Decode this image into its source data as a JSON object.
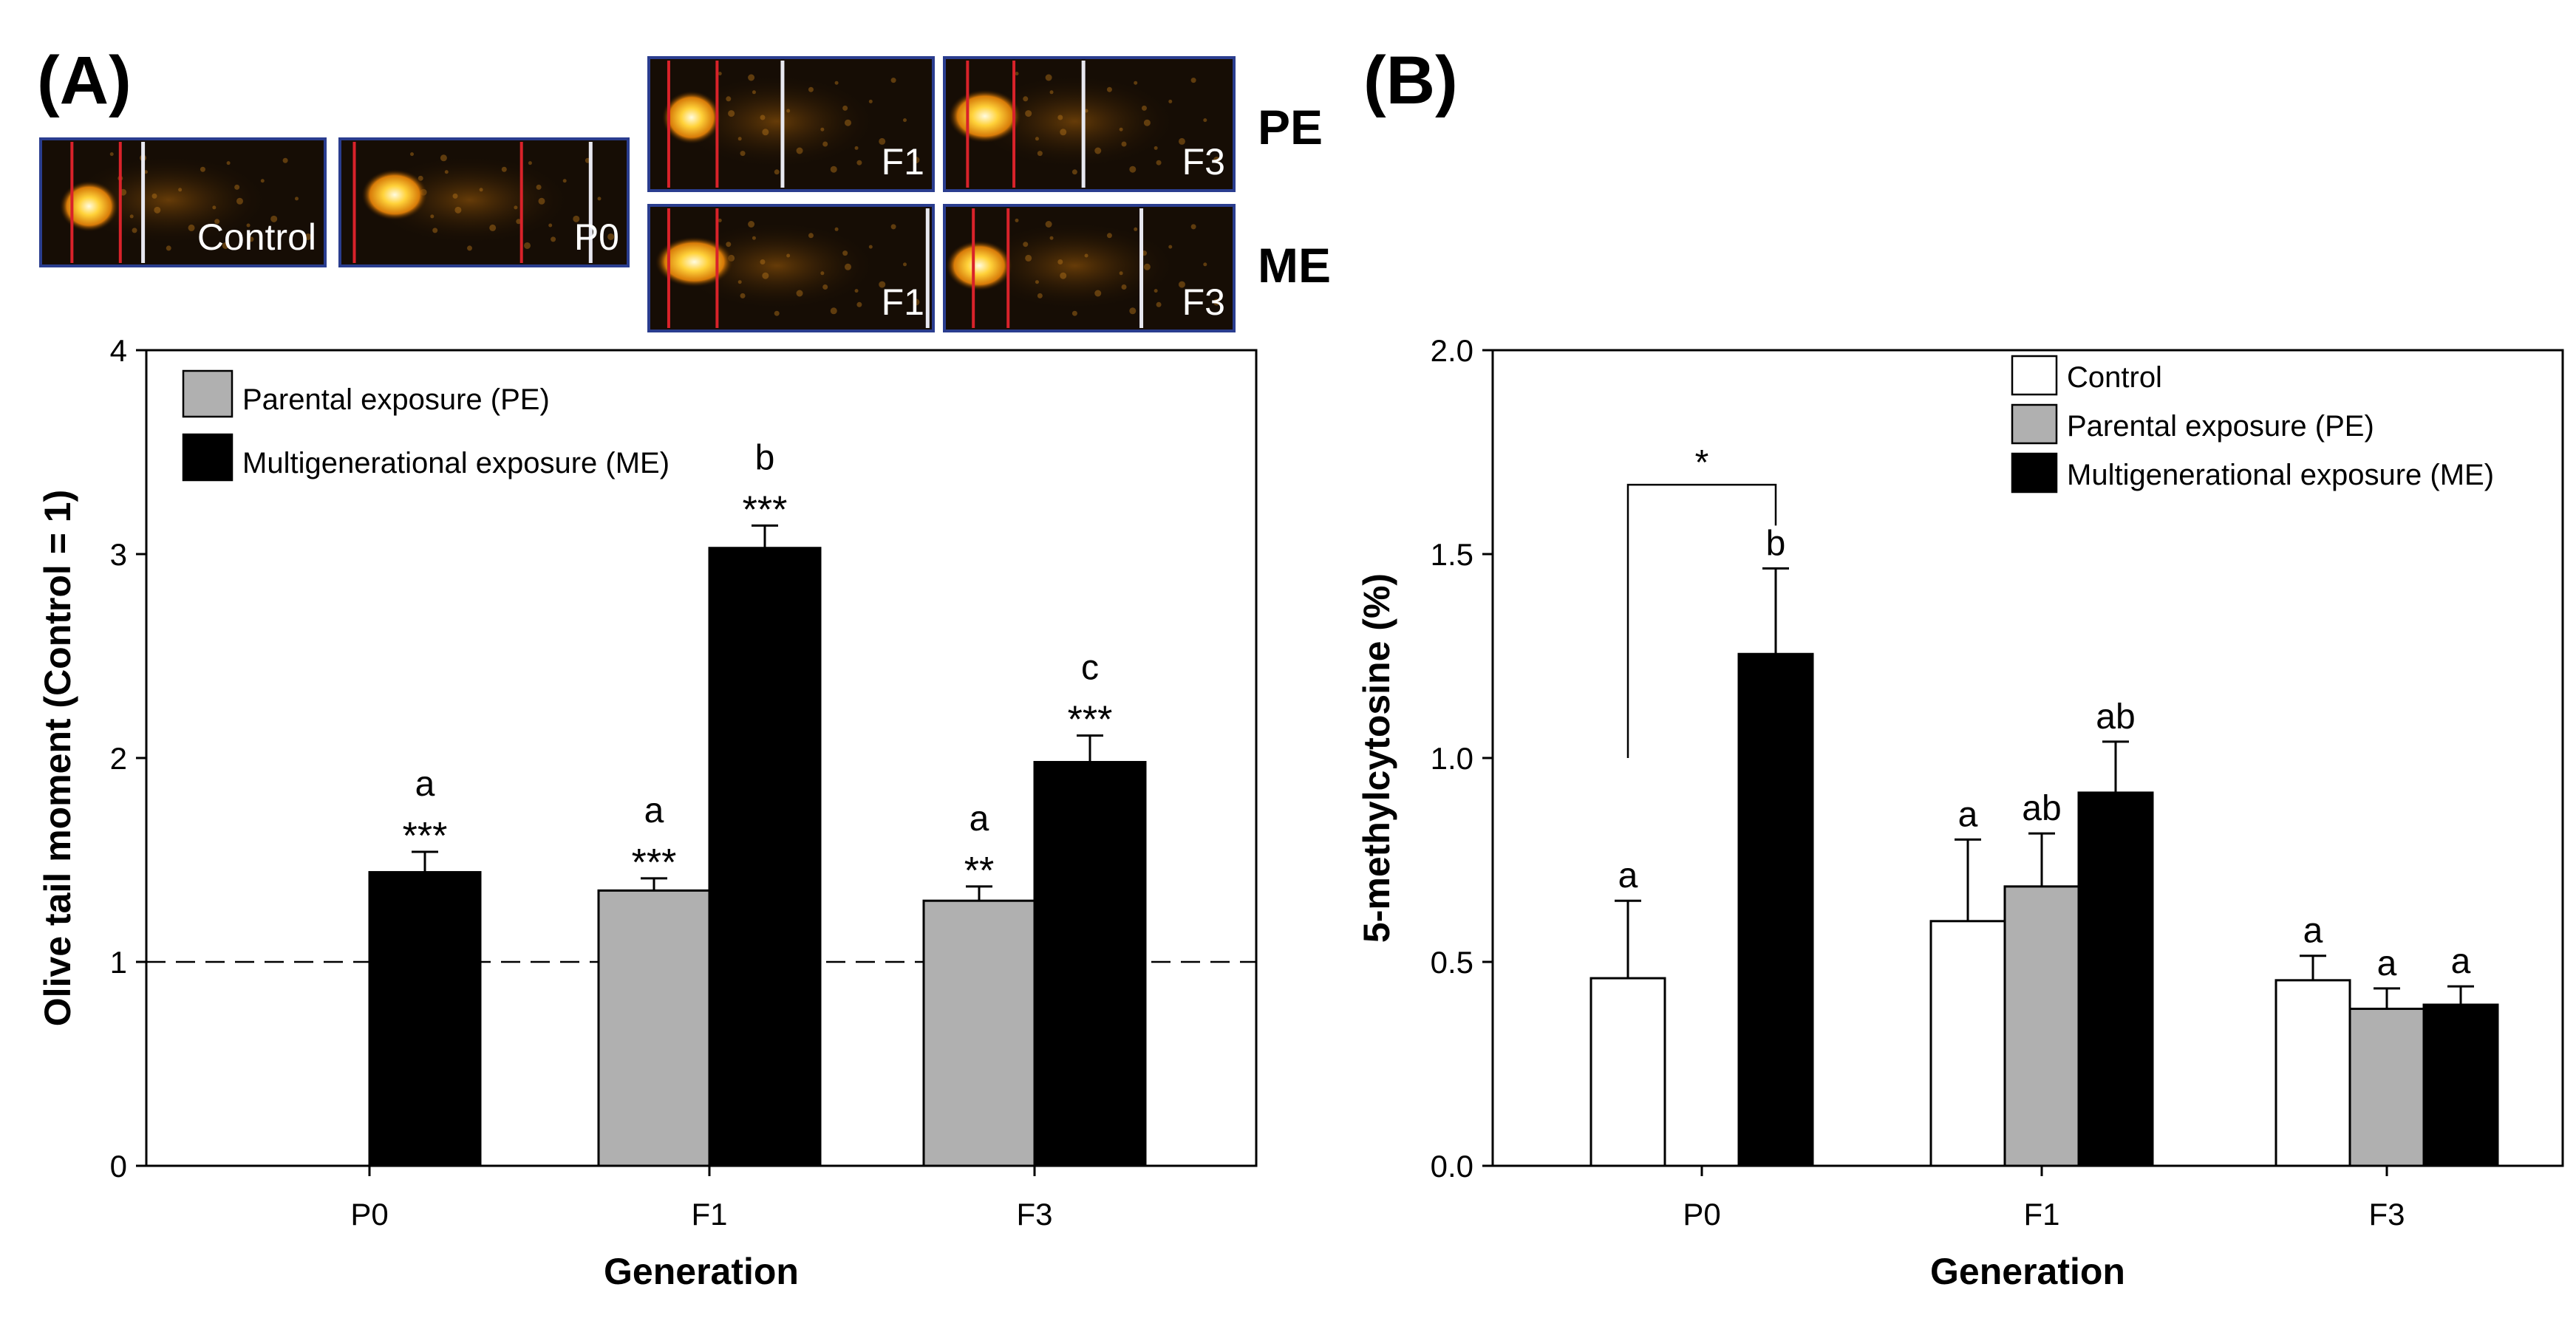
{
  "figure": {
    "panel_a_label": "(A)",
    "panel_b_label": "(B)",
    "comet_images": {
      "pe_label": "PE",
      "me_label": "ME",
      "tiles": [
        {
          "id": "control",
          "label": "Control",
          "group": ""
        },
        {
          "id": "p0",
          "label": "P0",
          "group": ""
        },
        {
          "id": "pe-f1",
          "label": "F1",
          "group": "PE"
        },
        {
          "id": "pe-f3",
          "label": "F3",
          "group": "PE"
        },
        {
          "id": "me-f1",
          "label": "F1",
          "group": "ME"
        },
        {
          "id": "me-f3",
          "label": "F3",
          "group": "ME"
        }
      ]
    }
  },
  "chart_data": [
    {
      "type": "bar",
      "panel": "A",
      "xlabel": "Generation",
      "ylabel": "Olive tail moment (Control = 1)",
      "ylim": [
        0,
        4
      ],
      "yticks": [
        "0",
        "1",
        "2",
        "3",
        "4"
      ],
      "categories": [
        "P0",
        "F1",
        "F3"
      ],
      "reference_line": 1,
      "legend_position": "top-left",
      "series": [
        {
          "name": "Parental exposure (PE)",
          "color": "#b0b0b0",
          "values": [
            null,
            1.35,
            1.3
          ],
          "errors": [
            null,
            0.06,
            0.07
          ],
          "letters": [
            null,
            "a",
            "a"
          ],
          "stars": [
            null,
            "***",
            "**"
          ]
        },
        {
          "name": "Multigenerational exposure (ME)",
          "color": "#000000",
          "values": [
            1.44,
            3.03,
            1.98
          ],
          "errors": [
            0.1,
            0.11,
            0.13
          ],
          "letters": [
            "a",
            "b",
            "c"
          ],
          "stars": [
            "***",
            "***",
            "***"
          ]
        }
      ]
    },
    {
      "type": "bar",
      "panel": "B",
      "xlabel": "Generation",
      "ylabel": "5-methylcytosine (%)",
      "ylim": [
        0,
        2.0
      ],
      "yticks": [
        "0.0",
        "0.5",
        "1.0",
        "1.5",
        "2.0"
      ],
      "categories": [
        "P0",
        "F1",
        "F3"
      ],
      "legend_position": "top-right",
      "comparison": {
        "label": "*",
        "category": "P0"
      },
      "series": [
        {
          "name": "Control",
          "color": "#ffffff",
          "values": [
            0.46,
            0.6,
            0.455
          ],
          "errors": [
            0.19,
            0.2,
            0.06
          ],
          "letters": [
            "a",
            "a",
            "a"
          ]
        },
        {
          "name": "Parental exposure (PE)",
          "color": "#b0b0b0",
          "values": [
            null,
            0.685,
            0.385
          ],
          "errors": [
            null,
            0.13,
            0.05
          ],
          "letters": [
            null,
            "ab",
            "a"
          ]
        },
        {
          "name": "Multigenerational exposure (ME)",
          "color": "#000000",
          "values": [
            1.255,
            0.915,
            0.395
          ],
          "errors": [
            0.21,
            0.125,
            0.045
          ],
          "letters": [
            "b",
            "ab",
            "a"
          ]
        }
      ]
    }
  ]
}
